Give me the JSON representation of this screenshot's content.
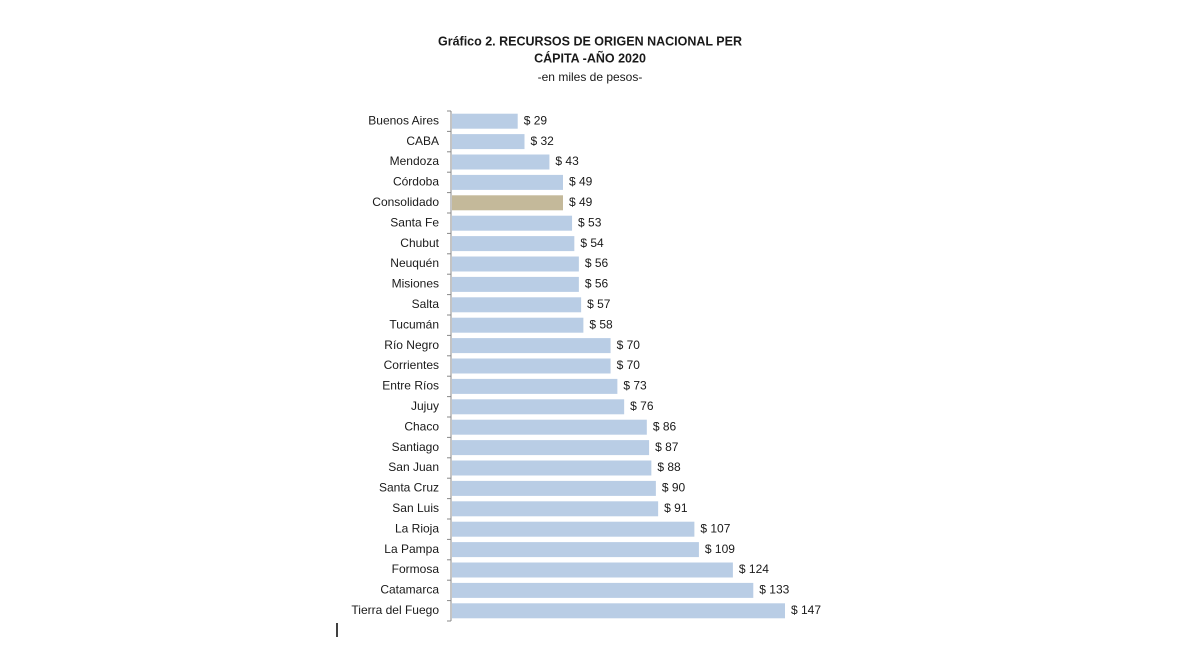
{
  "chart_data": {
    "type": "bar",
    "orientation": "horizontal",
    "title": [
      "Gráfico 2. RECURSOS DE ORIGEN NACIONAL  PER",
      "CÁPITA -AÑO 2020"
    ],
    "subtitle": "-en miles de pesos-",
    "categories": [
      "Buenos Aires",
      "CABA",
      "Mendoza",
      "Córdoba",
      "Consolidado",
      "Santa Fe",
      "Chubut",
      "Neuquén",
      "Misiones",
      "Salta",
      "Tucumán",
      "Río Negro",
      "Corrientes",
      "Entre Ríos",
      "Jujuy",
      "Chaco",
      "Santiago",
      "San Juan",
      "Santa Cruz",
      "San Luis",
      "La Rioja",
      "La Pampa",
      "Formosa",
      "Catamarca",
      "Tierra del Fuego"
    ],
    "values": [
      29,
      32,
      43,
      49,
      49,
      53,
      54,
      56,
      56,
      57,
      58,
      70,
      70,
      73,
      76,
      86,
      87,
      88,
      90,
      91,
      107,
      109,
      124,
      133,
      147
    ],
    "value_labels": [
      "$ 29",
      "$ 32",
      "$ 43",
      "$ 49",
      "$ 49",
      "$ 53",
      "$ 54",
      "$ 56",
      "$ 56",
      "$ 57",
      "$ 58",
      "$ 70",
      "$ 70",
      "$ 73",
      "$ 76",
      "$ 86",
      "$ 87",
      "$ 88",
      "$ 90",
      "$ 91",
      "$ 107",
      "$ 109",
      "$ 124",
      "$ 133",
      "$ 147"
    ],
    "colors": [
      "#b9cde5",
      "#b9cde5",
      "#b9cde5",
      "#b9cde5",
      "#c4b99a",
      "#b9cde5",
      "#b9cde5",
      "#b9cde5",
      "#b9cde5",
      "#b9cde5",
      "#b9cde5",
      "#b9cde5",
      "#b9cde5",
      "#b9cde5",
      "#b9cde5",
      "#b9cde5",
      "#b9cde5",
      "#b9cde5",
      "#b9cde5",
      "#b9cde5",
      "#b9cde5",
      "#b9cde5",
      "#b9cde5",
      "#b9cde5",
      "#b9cde5"
    ]
  }
}
